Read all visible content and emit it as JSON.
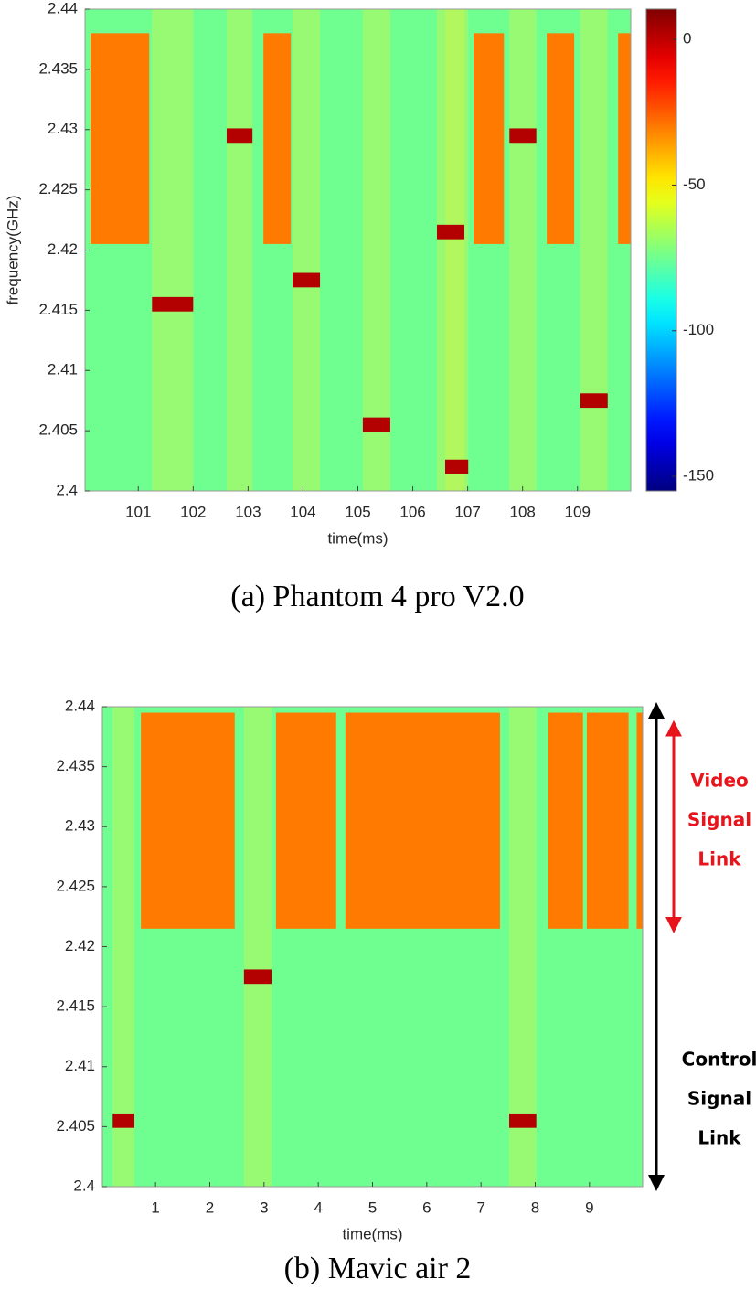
{
  "chart_data": [
    {
      "type": "heatmap",
      "xlabel": "time(ms)",
      "ylabel": "frequency(GHz)",
      "caption": "(a)  Phantom  4  pro  V2.0",
      "xlim": [
        100.03,
        109.97
      ],
      "ylim": [
        2.4,
        2.44
      ],
      "xticks": [
        101,
        102,
        103,
        104,
        105,
        106,
        107,
        108,
        109
      ],
      "yticks": [
        2.4,
        2.405,
        2.41,
        2.415,
        2.42,
        2.425,
        2.43,
        2.435,
        2.44
      ],
      "background": -75,
      "colorbar": {
        "clim": [
          -155,
          10.4
        ],
        "ticks": [
          0,
          -50,
          -100,
          -150
        ]
      },
      "regions": [
        {
          "x": [
            100.13,
            101.2
          ],
          "y": [
            2.4205,
            2.438
          ],
          "value": -30
        },
        {
          "x": [
            103.28,
            103.78
          ],
          "y": [
            2.4205,
            2.438
          ],
          "value": -30
        },
        {
          "x": [
            107.11,
            107.66
          ],
          "y": [
            2.4205,
            2.438
          ],
          "value": -30
        },
        {
          "x": [
            108.44,
            108.94
          ],
          "y": [
            2.4205,
            2.438
          ],
          "value": -30
        },
        {
          "x": [
            109.74,
            109.97
          ],
          "y": [
            2.4205,
            2.438
          ],
          "value": -30
        },
        {
          "x": [
            101.25,
            102.0
          ],
          "y": [
            2.4149,
            2.4161
          ],
          "value": 2
        },
        {
          "x": [
            102.61,
            103.08
          ],
          "y": [
            2.4289,
            2.4301
          ],
          "value": 2
        },
        {
          "x": [
            103.81,
            104.31
          ],
          "y": [
            2.4169,
            2.4181
          ],
          "value": 2
        },
        {
          "x": [
            105.09,
            105.59
          ],
          "y": [
            2.4049,
            2.4061
          ],
          "value": 2
        },
        {
          "x": [
            106.59,
            107.01
          ],
          "y": [
            2.4014,
            2.4026
          ],
          "value": 2
        },
        {
          "x": [
            106.44,
            106.94
          ],
          "y": [
            2.4209,
            2.4221
          ],
          "value": 2
        },
        {
          "x": [
            107.76,
            108.25
          ],
          "y": [
            2.4289,
            2.4301
          ],
          "value": 2
        },
        {
          "x": [
            109.05,
            109.55
          ],
          "y": [
            2.4069,
            2.4081
          ],
          "value": 2
        }
      ]
    },
    {
      "type": "heatmap",
      "xlabel": "time(ms)",
      "caption": "(b)  Mavic  air  2",
      "xlim": [
        0.02,
        9.98
      ],
      "ylim": [
        2.4,
        2.44
      ],
      "xticks": [
        1,
        2,
        3,
        4,
        5,
        6,
        7,
        8,
        9
      ],
      "yticks": [
        2.4,
        2.405,
        2.41,
        2.415,
        2.42,
        2.425,
        2.43,
        2.435,
        2.44
      ],
      "background": -75,
      "regions": [
        {
          "x": [
            0.73,
            2.46
          ],
          "y": [
            2.4215,
            2.4395
          ],
          "value": -30
        },
        {
          "x": [
            3.22,
            4.33
          ],
          "y": [
            2.4215,
            2.4395
          ],
          "value": -30
        },
        {
          "x": [
            4.5,
            7.35
          ],
          "y": [
            2.4215,
            2.4395
          ],
          "value": -30
        },
        {
          "x": [
            8.24,
            8.88
          ],
          "y": [
            2.4215,
            2.4395
          ],
          "value": -30
        },
        {
          "x": [
            8.95,
            9.72
          ],
          "y": [
            2.4215,
            2.4395
          ],
          "value": -30
        },
        {
          "x": [
            9.87,
            9.98
          ],
          "y": [
            2.4215,
            2.4395
          ],
          "value": -30
        },
        {
          "x": [
            0.21,
            0.61
          ],
          "y": [
            2.4049,
            2.4061
          ],
          "value": 2
        },
        {
          "x": [
            2.63,
            3.14
          ],
          "y": [
            2.4169,
            2.4181
          ],
          "value": 2
        },
        {
          "x": [
            7.52,
            8.02
          ],
          "y": [
            2.4049,
            2.4061
          ],
          "value": 2
        }
      ],
      "annotations": [
        {
          "lines": [
            "Video",
            "Signal",
            "Link"
          ],
          "color": "#e8141b",
          "y": [
            2.4215,
            2.4385
          ]
        },
        {
          "lines": [
            "Control",
            "Signal",
            "Link"
          ],
          "color": "#000000",
          "y": [
            2.4,
            2.44
          ]
        }
      ]
    }
  ]
}
